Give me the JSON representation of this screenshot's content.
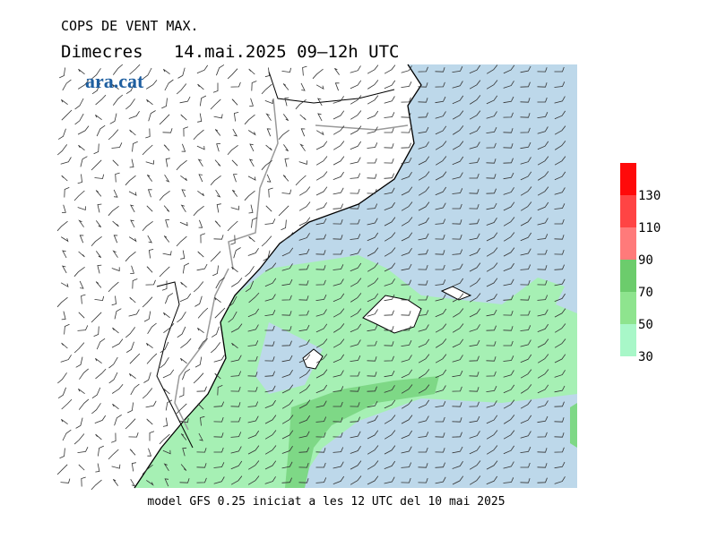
{
  "header": {
    "title": "COPS DE VENT MAX.",
    "subtitle": "Dimecres   14.mai.2025 09–12h UTC",
    "logo": "ara.cat"
  },
  "footer": "model GFS 0.25 iniciat a les 12 UTC del 10 mai 2025",
  "colorbar": {
    "ticks": [
      30,
      50,
      70,
      90,
      110,
      130
    ],
    "colors": [
      "#a8f7c8",
      "#8ee48e",
      "#6ccc6c",
      "#ff7a7a",
      "#ff4444",
      "#ff0a0a"
    ]
  }
}
